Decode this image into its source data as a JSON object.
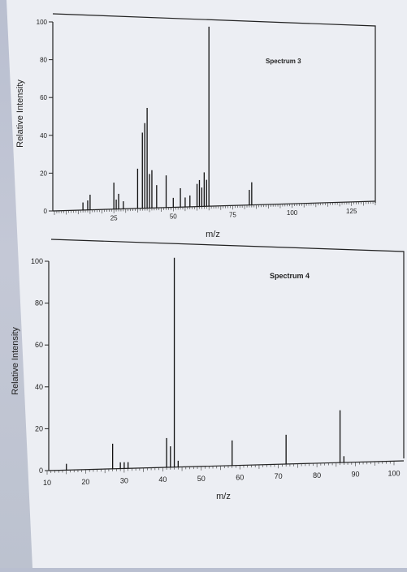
{
  "chart_data": [
    {
      "type": "bar",
      "title": "Spectrum 3",
      "xlabel": "m/z",
      "ylabel": "Relative Intensity",
      "xlim": [
        0,
        135
      ],
      "ylim": [
        0,
        100
      ],
      "xticks": [
        "25",
        "50",
        "75",
        "100",
        "125"
      ],
      "yticks": [
        "0",
        "20",
        "40",
        "60",
        "80",
        "100"
      ],
      "x": [
        12,
        14,
        15,
        25,
        26,
        27,
        29,
        35,
        37,
        38,
        39,
        40,
        41,
        43,
        47,
        50,
        53,
        55,
        57,
        60,
        61,
        62,
        63,
        64,
        65,
        82,
        83
      ],
      "values": [
        4,
        5,
        8,
        14,
        5,
        8,
        4,
        21,
        40,
        45,
        53,
        18,
        20,
        12,
        17,
        5,
        10,
        5,
        6,
        12,
        14,
        10,
        18,
        14,
        95,
        8,
        12
      ]
    },
    {
      "type": "bar",
      "title": "Spectrum 4",
      "xlabel": "m/z",
      "ylabel": "Relative Intensity",
      "xlim": [
        10,
        100
      ],
      "ylim": [
        0,
        100
      ],
      "xticks": [
        "10",
        "20",
        "30",
        "40",
        "50",
        "60",
        "70",
        "80",
        "90",
        "100"
      ],
      "yticks": [
        "0",
        "20",
        "40",
        "60",
        "80",
        "100"
      ],
      "x": [
        15,
        27,
        29,
        30,
        31,
        41,
        42,
        43,
        44,
        58,
        72,
        86,
        87
      ],
      "values": [
        3,
        12,
        3,
        3,
        3,
        14,
        10,
        100,
        3,
        12,
        14,
        25,
        3
      ]
    }
  ]
}
